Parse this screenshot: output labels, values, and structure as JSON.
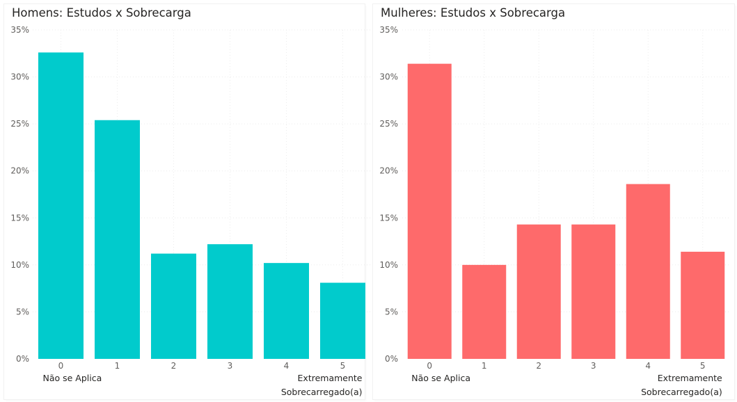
{
  "chart_data": [
    {
      "type": "bar",
      "title": "Homens: Estudos x Sobrecarga",
      "categories": [
        "0",
        "1",
        "2",
        "3",
        "4",
        "5"
      ],
      "values": [
        32.6,
        25.4,
        11.2,
        12.2,
        10.2,
        8.1
      ],
      "ylim": [
        0,
        35
      ],
      "yticks": [
        "0%",
        "5%",
        "10%",
        "15%",
        "20%",
        "25%",
        "30%",
        "35%"
      ],
      "axis_start_label": "Não se Aplica",
      "axis_end_label": [
        "Extremamente",
        "Sobrecarregado(a)"
      ],
      "color": "#01cbcc",
      "grid": true
    },
    {
      "type": "bar",
      "title": "Mulheres: Estudos x Sobrecarga",
      "categories": [
        "0",
        "1",
        "2",
        "3",
        "4",
        "5"
      ],
      "values": [
        31.4,
        10.0,
        14.3,
        14.3,
        18.6,
        11.4
      ],
      "ylim": [
        0,
        35
      ],
      "yticks": [
        "0%",
        "5%",
        "10%",
        "15%",
        "20%",
        "25%",
        "30%",
        "35%"
      ],
      "axis_start_label": "Não se Aplica",
      "axis_end_label": [
        "Extremamente",
        "Sobrecarregado(a)"
      ],
      "color": "#fe6a6b",
      "grid": true
    }
  ]
}
